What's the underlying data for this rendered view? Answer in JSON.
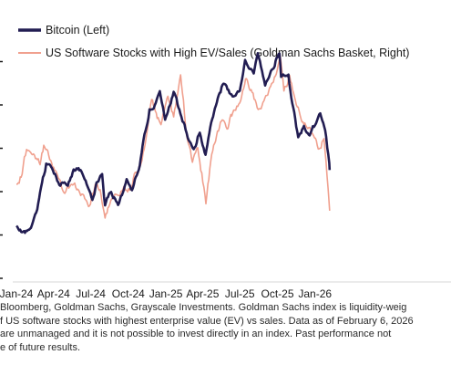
{
  "chart_data": {
    "type": "line",
    "title": "",
    "xlabel": "",
    "ylabel": "",
    "x_ticks": [
      "Jan-24",
      "Apr-24",
      "Jul-24",
      "Oct-24",
      "Jan-25",
      "Apr-25",
      "Jul-25",
      "Oct-25",
      "Jan-26"
    ],
    "legend_position": "top-left",
    "grid": false,
    "series": [
      {
        "name": "Bitcoin (Left)",
        "color": "#221d52",
        "axis": "left",
        "x": [
          "2024-01-01",
          "2024-01-22",
          "2024-02-08",
          "2024-02-21",
          "2024-03-06",
          "2024-03-14",
          "2024-03-28",
          "2024-04-15",
          "2024-04-25",
          "2024-05-06",
          "2024-05-20",
          "2024-06-06",
          "2024-06-21",
          "2024-07-05",
          "2024-07-15",
          "2024-07-29",
          "2024-08-05",
          "2024-08-20",
          "2024-09-06",
          "2024-09-27",
          "2024-10-10",
          "2024-10-29",
          "2024-11-12",
          "2024-11-22",
          "2024-12-05",
          "2024-12-17",
          "2024-12-30",
          "2025-01-20",
          "2025-02-03",
          "2025-02-26",
          "2025-03-10",
          "2025-03-25",
          "2025-04-08",
          "2025-04-22",
          "2025-05-08",
          "2025-05-22",
          "2025-06-13",
          "2025-07-01",
          "2025-07-14",
          "2025-08-04",
          "2025-08-14",
          "2025-09-01",
          "2025-09-15",
          "2025-10-06",
          "2025-10-10",
          "2025-10-28",
          "2025-11-04",
          "2025-11-21",
          "2025-12-05",
          "2025-12-19",
          "2026-01-06",
          "2026-01-14",
          "2026-01-26",
          "2026-02-05",
          "2026-02-06"
        ],
        "values": [
          44000,
          41000,
          44500,
          51500,
          67000,
          73000,
          70500,
          63000,
          64000,
          63000,
          70000,
          70000,
          63500,
          56000,
          64000,
          68000,
          54000,
          60000,
          54000,
          65500,
          60500,
          72000,
          88000,
          98000,
          100000,
          106000,
          93000,
          106000,
          98000,
          84000,
          80000,
          87500,
          77000,
          92000,
          103000,
          110000,
          104000,
          106500,
          121000,
          114000,
          123500,
          108500,
          116000,
          124000,
          113000,
          114000,
          103500,
          85000,
          90000,
          86000,
          93000,
          96000,
          88000,
          73000,
          70000
        ]
      },
      {
        "name": "US Software Stocks with High EV/Sales (Goldman Sachs Basket, Right)",
        "color": "#f0a08e",
        "axis": "right",
        "x": [
          "2024-01-01",
          "2024-01-15",
          "2024-01-26",
          "2024-02-12",
          "2024-02-28",
          "2024-03-08",
          "2024-03-25",
          "2024-04-15",
          "2024-04-26",
          "2024-05-13",
          "2024-05-30",
          "2024-06-14",
          "2024-06-28",
          "2024-07-12",
          "2024-07-24",
          "2024-08-05",
          "2024-08-19",
          "2024-09-06",
          "2024-09-20",
          "2024-10-04",
          "2024-10-18",
          "2024-11-01",
          "2024-11-14",
          "2024-11-27",
          "2024-12-06",
          "2024-12-20",
          "2025-01-06",
          "2025-01-20",
          "2025-02-06",
          "2025-02-20",
          "2025-03-07",
          "2025-03-20",
          "2025-04-04",
          "2025-04-09",
          "2025-04-21",
          "2025-05-05",
          "2025-05-19",
          "2025-06-02",
          "2025-06-16",
          "2025-07-01",
          "2025-07-15",
          "2025-07-31",
          "2025-08-15",
          "2025-08-29",
          "2025-09-12",
          "2025-09-26",
          "2025-10-08",
          "2025-10-17",
          "2025-10-31",
          "2025-11-14",
          "2025-11-28",
          "2025-12-12",
          "2025-12-26",
          "2026-01-09",
          "2026-01-23",
          "2026-02-02",
          "2026-02-06"
        ],
        "values": [
          76,
          80,
          90,
          88,
          84,
          91,
          85,
          78,
          73,
          76,
          74,
          72,
          68,
          76,
          74,
          63,
          70,
          72,
          75,
          74,
          81,
          84,
          95,
          108,
          104,
          99,
          110,
          102,
          118,
          96,
          85,
          90,
          75,
          69,
          85,
          95,
          101,
          98,
          105,
          107,
          117,
          112,
          105,
          108,
          113,
          118,
          125,
          112,
          118,
          108,
          101,
          98,
          96,
          90,
          94,
          75,
          66
        ]
      }
    ]
  },
  "footnote": {
    "lines": [
      "Bloomberg, Goldman Sachs, Grayscale Investments. Goldman Sachs index is liquidity-weig",
      "f US software stocks with highest enterprise value (EV) vs sales. Data as of February 6, 2026",
      "are unmanaged and it is not possible to invest directly in an index. Past performance not",
      "e of future results."
    ]
  }
}
